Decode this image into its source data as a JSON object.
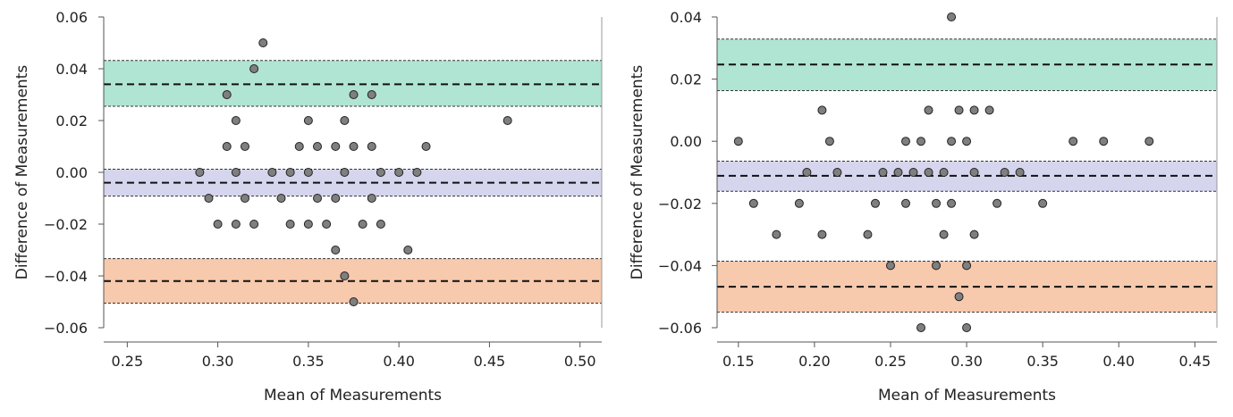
{
  "chart_data": [
    {
      "type": "scatter",
      "title": "",
      "xlabel": "Mean of Measurements",
      "ylabel": "Difference of Measurements",
      "xlim": [
        0.237,
        0.512
      ],
      "ylim": [
        -0.06,
        0.06
      ],
      "xticks": [
        0.25,
        0.3,
        0.35,
        0.4,
        0.45,
        0.5
      ],
      "xtick_labels": [
        "0.25",
        "0.30",
        "0.35",
        "0.40",
        "0.45",
        "0.50"
      ],
      "yticks": [
        -0.06,
        -0.04,
        -0.02,
        0.0,
        0.02,
        0.04,
        0.06
      ],
      "ytick_labels": [
        "−0.06",
        "−0.04",
        "−0.02",
        "0.00",
        "0.02",
        "0.04",
        "0.06"
      ],
      "bands": [
        {
          "name": "upper limit of agreement",
          "mean": 0.034,
          "lower": 0.0255,
          "upper": 0.0432,
          "color": "#b0e4d3"
        },
        {
          "name": "mean difference",
          "mean": -0.004,
          "lower": -0.0092,
          "upper": 0.0012,
          "color": "#d5d5ee"
        },
        {
          "name": "lower limit of agreement",
          "mean": -0.042,
          "lower": -0.0505,
          "upper": -0.0333,
          "color": "#f7c9ad"
        }
      ],
      "points": [
        {
          "x": 0.325,
          "y": 0.05
        },
        {
          "x": 0.32,
          "y": 0.04
        },
        {
          "x": 0.305,
          "y": 0.03
        },
        {
          "x": 0.375,
          "y": 0.03
        },
        {
          "x": 0.385,
          "y": 0.03
        },
        {
          "x": 0.31,
          "y": 0.02
        },
        {
          "x": 0.35,
          "y": 0.02
        },
        {
          "x": 0.37,
          "y": 0.02
        },
        {
          "x": 0.46,
          "y": 0.02
        },
        {
          "x": 0.305,
          "y": 0.01
        },
        {
          "x": 0.315,
          "y": 0.01
        },
        {
          "x": 0.345,
          "y": 0.01
        },
        {
          "x": 0.355,
          "y": 0.01
        },
        {
          "x": 0.365,
          "y": 0.01
        },
        {
          "x": 0.375,
          "y": 0.01
        },
        {
          "x": 0.385,
          "y": 0.01
        },
        {
          "x": 0.415,
          "y": 0.01
        },
        {
          "x": 0.29,
          "y": 0.0
        },
        {
          "x": 0.31,
          "y": 0.0
        },
        {
          "x": 0.33,
          "y": 0.0
        },
        {
          "x": 0.34,
          "y": 0.0
        },
        {
          "x": 0.35,
          "y": 0.0
        },
        {
          "x": 0.37,
          "y": 0.0
        },
        {
          "x": 0.39,
          "y": 0.0
        },
        {
          "x": 0.4,
          "y": 0.0
        },
        {
          "x": 0.41,
          "y": 0.0
        },
        {
          "x": 0.295,
          "y": -0.01
        },
        {
          "x": 0.315,
          "y": -0.01
        },
        {
          "x": 0.335,
          "y": -0.01
        },
        {
          "x": 0.355,
          "y": -0.01
        },
        {
          "x": 0.365,
          "y": -0.01
        },
        {
          "x": 0.385,
          "y": -0.01
        },
        {
          "x": 0.3,
          "y": -0.02
        },
        {
          "x": 0.31,
          "y": -0.02
        },
        {
          "x": 0.32,
          "y": -0.02
        },
        {
          "x": 0.34,
          "y": -0.02
        },
        {
          "x": 0.35,
          "y": -0.02
        },
        {
          "x": 0.36,
          "y": -0.02
        },
        {
          "x": 0.38,
          "y": -0.02
        },
        {
          "x": 0.39,
          "y": -0.02
        },
        {
          "x": 0.365,
          "y": -0.03
        },
        {
          "x": 0.405,
          "y": -0.03
        },
        {
          "x": 0.37,
          "y": -0.04
        },
        {
          "x": 0.375,
          "y": -0.05
        }
      ]
    },
    {
      "type": "scatter",
      "title": "",
      "xlabel": "Mean of Measurements",
      "ylabel": "Difference of Measurements",
      "xlim": [
        0.136,
        0.4645
      ],
      "ylim": [
        -0.06,
        0.04
      ],
      "xticks": [
        0.15,
        0.2,
        0.25,
        0.3,
        0.35,
        0.4,
        0.45
      ],
      "xtick_labels": [
        "0.15",
        "0.20",
        "0.25",
        "0.30",
        "0.35",
        "0.40",
        "0.45"
      ],
      "yticks": [
        -0.06,
        -0.04,
        -0.02,
        0.0,
        0.02,
        0.04
      ],
      "ytick_labels": [
        "−0.06",
        "−0.04",
        "−0.02",
        "0.00",
        "0.02",
        "0.04"
      ],
      "bands": [
        {
          "name": "upper limit of agreement",
          "mean": 0.0247,
          "lower": 0.0163,
          "upper": 0.0329,
          "color": "#b0e4d3"
        },
        {
          "name": "mean difference",
          "mean": -0.0111,
          "lower": -0.0161,
          "upper": -0.0064,
          "color": "#d5d5ee"
        },
        {
          "name": "lower limit of agreement",
          "mean": -0.0468,
          "lower": -0.055,
          "upper": -0.0386,
          "color": "#f7c9ad"
        }
      ],
      "points": [
        {
          "x": 0.29,
          "y": 0.04
        },
        {
          "x": 0.205,
          "y": 0.01
        },
        {
          "x": 0.275,
          "y": 0.01
        },
        {
          "x": 0.295,
          "y": 0.01
        },
        {
          "x": 0.305,
          "y": 0.01
        },
        {
          "x": 0.315,
          "y": 0.01
        },
        {
          "x": 0.15,
          "y": 0.0
        },
        {
          "x": 0.21,
          "y": 0.0
        },
        {
          "x": 0.26,
          "y": 0.0
        },
        {
          "x": 0.27,
          "y": 0.0
        },
        {
          "x": 0.29,
          "y": 0.0
        },
        {
          "x": 0.3,
          "y": 0.0
        },
        {
          "x": 0.37,
          "y": 0.0
        },
        {
          "x": 0.39,
          "y": 0.0
        },
        {
          "x": 0.42,
          "y": 0.0
        },
        {
          "x": 0.195,
          "y": -0.01
        },
        {
          "x": 0.215,
          "y": -0.01
        },
        {
          "x": 0.245,
          "y": -0.01
        },
        {
          "x": 0.255,
          "y": -0.01
        },
        {
          "x": 0.265,
          "y": -0.01
        },
        {
          "x": 0.275,
          "y": -0.01
        },
        {
          "x": 0.285,
          "y": -0.01
        },
        {
          "x": 0.305,
          "y": -0.01
        },
        {
          "x": 0.325,
          "y": -0.01
        },
        {
          "x": 0.335,
          "y": -0.01
        },
        {
          "x": 0.16,
          "y": -0.02
        },
        {
          "x": 0.19,
          "y": -0.02
        },
        {
          "x": 0.24,
          "y": -0.02
        },
        {
          "x": 0.26,
          "y": -0.02
        },
        {
          "x": 0.28,
          "y": -0.02
        },
        {
          "x": 0.29,
          "y": -0.02
        },
        {
          "x": 0.32,
          "y": -0.02
        },
        {
          "x": 0.35,
          "y": -0.02
        },
        {
          "x": 0.175,
          "y": -0.03
        },
        {
          "x": 0.205,
          "y": -0.03
        },
        {
          "x": 0.235,
          "y": -0.03
        },
        {
          "x": 0.285,
          "y": -0.03
        },
        {
          "x": 0.305,
          "y": -0.03
        },
        {
          "x": 0.25,
          "y": -0.04
        },
        {
          "x": 0.28,
          "y": -0.04
        },
        {
          "x": 0.3,
          "y": -0.04
        },
        {
          "x": 0.295,
          "y": -0.05
        },
        {
          "x": 0.27,
          "y": -0.06
        },
        {
          "x": 0.3,
          "y": -0.06
        }
      ]
    }
  ],
  "colors": {
    "point_fill": "#7f7f7f",
    "point_stroke": "#222222",
    "mean_line": "#111111",
    "limit_line": "#333333",
    "axis": "#555555"
  }
}
